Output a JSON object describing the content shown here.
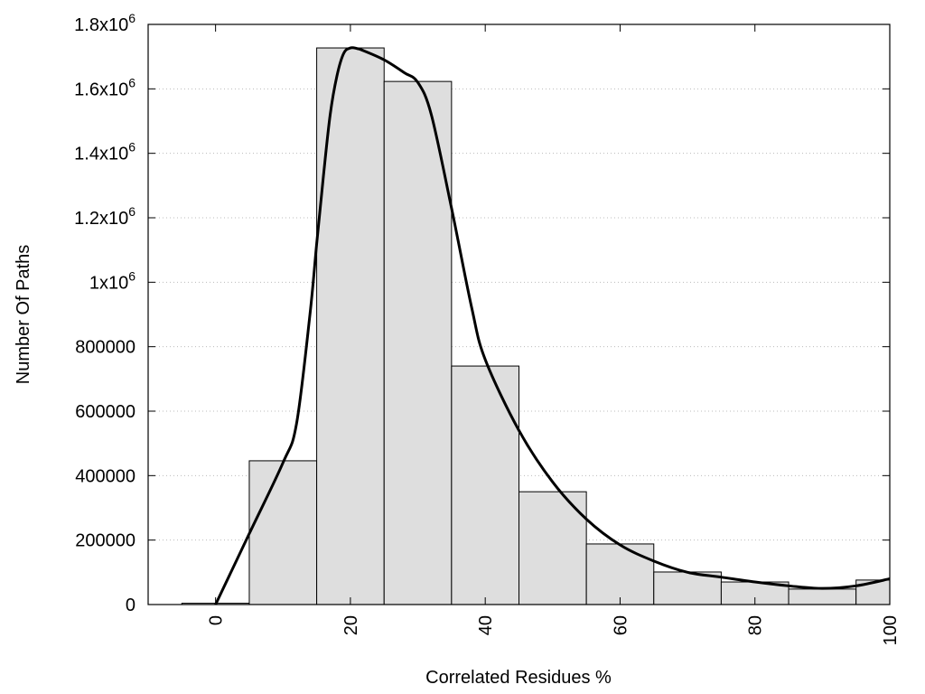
{
  "chart_data": {
    "type": "bar",
    "title": "",
    "xlabel": "Correlated Residues %",
    "ylabel": "Number Of Paths",
    "xlim": [
      -10,
      100
    ],
    "ylim": [
      0,
      1800000
    ],
    "grid": "horizontal dotted",
    "bar_color": "#dedede",
    "categories": [
      0,
      10,
      20,
      30,
      40,
      50,
      60,
      70,
      80,
      90,
      100
    ],
    "values": [
      4000,
      446000,
      1727000,
      1623000,
      740000,
      350000,
      188000,
      101000,
      70000,
      48000,
      76000
    ],
    "bar_width": 10,
    "curve": {
      "x": [
        0,
        5,
        10,
        12,
        14,
        15,
        16,
        17,
        18,
        19,
        20,
        21,
        22,
        25,
        28,
        30,
        32,
        35,
        38,
        40,
        45,
        50,
        55,
        60,
        65,
        70,
        75,
        80,
        85,
        90,
        95,
        100
      ],
      "y": [
        0,
        220000,
        440000,
        560000,
        900000,
        1120000,
        1330000,
        1520000,
        1640000,
        1710000,
        1727000,
        1725000,
        1718000,
        1690000,
        1650000,
        1620000,
        1520000,
        1230000,
        920000,
        760000,
        540000,
        380000,
        265000,
        185000,
        135000,
        100000,
        85000,
        70000,
        58000,
        50000,
        58000,
        80000
      ]
    },
    "xticks": [
      {
        "value": 0,
        "label": "0"
      },
      {
        "value": 20,
        "label": "20"
      },
      {
        "value": 40,
        "label": "40"
      },
      {
        "value": 60,
        "label": "60"
      },
      {
        "value": 80,
        "label": "80"
      },
      {
        "value": 100,
        "label": "100"
      }
    ],
    "yticks": [
      {
        "value": 0,
        "label": "0",
        "sup": ""
      },
      {
        "value": 200000,
        "label": "200000",
        "sup": ""
      },
      {
        "value": 400000,
        "label": "400000",
        "sup": ""
      },
      {
        "value": 600000,
        "label": "600000",
        "sup": ""
      },
      {
        "value": 800000,
        "label": "800000",
        "sup": ""
      },
      {
        "value": 1000000,
        "label": "1x10",
        "sup": "6"
      },
      {
        "value": 1200000,
        "label": "1.2x10",
        "sup": "6"
      },
      {
        "value": 1400000,
        "label": "1.4x10",
        "sup": "6"
      },
      {
        "value": 1600000,
        "label": "1.6x10",
        "sup": "6"
      },
      {
        "value": 1800000,
        "label": "1.8x10",
        "sup": "6"
      }
    ]
  }
}
